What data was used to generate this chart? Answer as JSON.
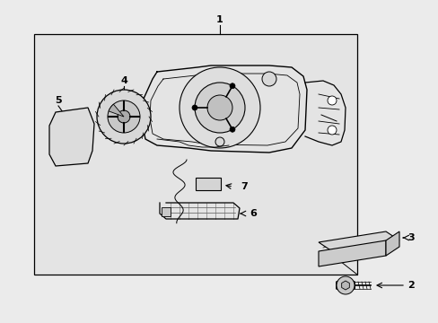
{
  "bg_color": "#ebebeb",
  "box_bg": "#e4e4e4",
  "line_color": "#000000",
  "fig_w": 4.89,
  "fig_h": 3.6,
  "dpi": 100
}
